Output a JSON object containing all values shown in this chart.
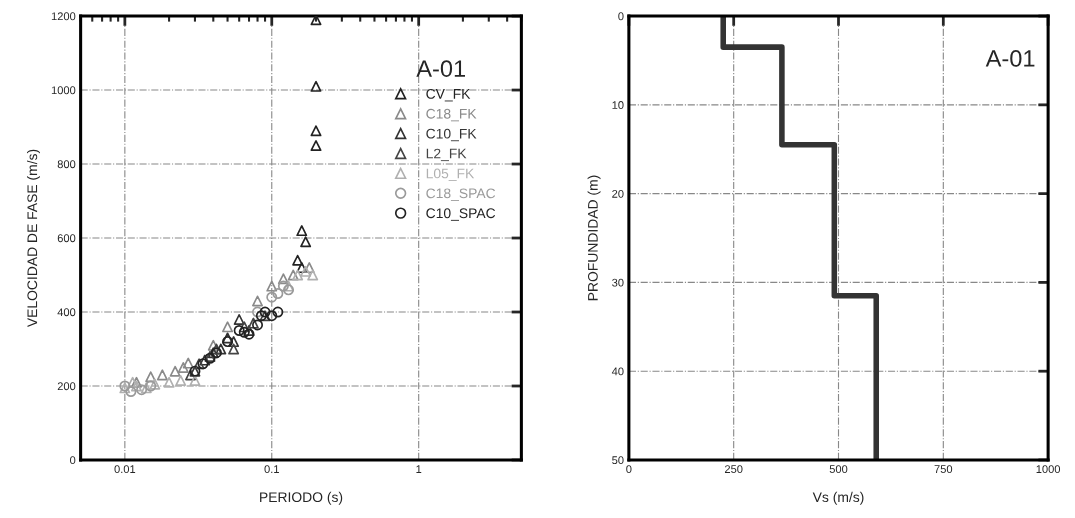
{
  "chart_data": [
    {
      "type": "scatter",
      "xlabel": "PERIODO (s)",
      "ylabel": "VELOCIDAD DE FASE (m/s)",
      "legend_title": "A-01",
      "log": "x",
      "xlim": [
        0.005,
        5
      ],
      "xticks": [
        0.01,
        0.1,
        1
      ],
      "ylim": [
        0,
        1200
      ],
      "yticks": [
        0,
        200,
        400,
        600,
        800,
        1000,
        1200
      ],
      "grid": true,
      "legend": "top right",
      "series": [
        {
          "name": "CV_FK",
          "color": "#222222",
          "marker": "triangle",
          "x": [
            0.2,
            0.2,
            0.2,
            0.2,
            0.16,
            0.17,
            0.15,
            0.16
          ],
          "values": [
            1190,
            1010,
            890,
            850,
            620,
            590,
            540,
            520
          ]
        },
        {
          "name": "C18_FK",
          "color": "#8a8a8a",
          "marker": "triangle",
          "x": [
            0.012,
            0.015,
            0.018,
            0.022,
            0.025,
            0.027,
            0.04,
            0.05,
            0.08,
            0.1,
            0.12,
            0.14,
            0.18
          ],
          "values": [
            210,
            225,
            230,
            240,
            250,
            262,
            310,
            360,
            430,
            470,
            490,
            500,
            520
          ]
        },
        {
          "name": "C10_FK",
          "color": "#333333",
          "marker": "triangle",
          "x": [
            0.03,
            0.035,
            0.04,
            0.045,
            0.05,
            0.055,
            0.06,
            0.07
          ],
          "values": [
            240,
            270,
            290,
            300,
            330,
            320,
            380,
            350
          ]
        },
        {
          "name": "L2_FK",
          "color": "#444444",
          "marker": "triangle",
          "x": [
            0.028,
            0.032,
            0.038,
            0.042,
            0.055,
            0.065,
            0.075,
            0.09
          ],
          "values": [
            230,
            260,
            280,
            300,
            300,
            360,
            370,
            390
          ]
        },
        {
          "name": "L05_FK",
          "color": "#b0b0b0",
          "marker": "triangle",
          "x": [
            0.01,
            0.0113,
            0.012,
            0.014,
            0.016,
            0.02,
            0.024,
            0.03,
            0.13,
            0.15,
            0.17,
            0.19
          ],
          "values": [
            195,
            210,
            200,
            195,
            205,
            210,
            215,
            215,
            470,
            500,
            510,
            500
          ]
        },
        {
          "name": "C18_SPAC",
          "color": "#9a9a9a",
          "marker": "circle",
          "x": [
            0.01,
            0.011,
            0.013,
            0.015,
            0.08,
            0.1,
            0.11,
            0.12,
            0.13
          ],
          "values": [
            200,
            185,
            190,
            200,
            400,
            440,
            450,
            470,
            460
          ]
        },
        {
          "name": "C10_SPAC",
          "color": "#222222",
          "marker": "circle",
          "x": [
            0.03,
            0.034,
            0.038,
            0.042,
            0.05,
            0.06,
            0.065,
            0.07,
            0.08,
            0.085,
            0.09,
            0.1,
            0.11
          ],
          "values": [
            240,
            260,
            275,
            290,
            320,
            350,
            345,
            340,
            365,
            390,
            400,
            390,
            400
          ]
        }
      ]
    },
    {
      "type": "line",
      "xlabel": "Vs (m/s)",
      "ylabel": "PROFUNDIDAD (m)",
      "annotations": [
        "A-01"
      ],
      "xlim": [
        0,
        1000
      ],
      "xticks": [
        0,
        250,
        500,
        750,
        1000
      ],
      "ylim": [
        50,
        0
      ],
      "yticks": [
        0,
        10,
        20,
        30,
        40,
        50
      ],
      "grid": true,
      "series": [
        {
          "color": "#333333",
          "x": [
            225,
            225,
            365,
            365,
            490,
            490,
            590,
            590
          ],
          "values": [
            0,
            3.5,
            3.5,
            14.5,
            14.5,
            31.5,
            31.5,
            50
          ]
        }
      ]
    }
  ]
}
